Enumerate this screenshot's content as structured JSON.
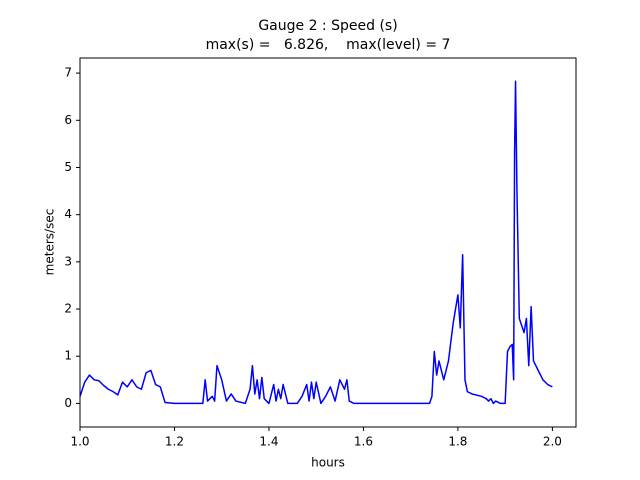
{
  "chart_data": {
    "type": "line",
    "title": "Gauge 2 : Speed (s)",
    "subtitle": "max(s) =   6.826,    max(level) = 7",
    "xlabel": "hours",
    "ylabel": "meters/sec",
    "xlim": [
      1.0,
      2.05
    ],
    "ylim": [
      -0.5,
      7.32
    ],
    "xticks": [
      {
        "value": 1.0,
        "label": "1.0"
      },
      {
        "value": 1.2,
        "label": "1.2"
      },
      {
        "value": 1.4,
        "label": "1.4"
      },
      {
        "value": 1.6,
        "label": "1.6"
      },
      {
        "value": 1.8,
        "label": "1.8"
      },
      {
        "value": 2.0,
        "label": "2.0"
      }
    ],
    "yticks": [
      0,
      1,
      2,
      3,
      4,
      5,
      6,
      7
    ],
    "series": [
      {
        "color": "#0000ff",
        "x": [
          1.0,
          1.01,
          1.02,
          1.03,
          1.04,
          1.05,
          1.06,
          1.07,
          1.08,
          1.09,
          1.1,
          1.11,
          1.12,
          1.13,
          1.14,
          1.15,
          1.16,
          1.17,
          1.18,
          1.2,
          1.26,
          1.265,
          1.27,
          1.28,
          1.285,
          1.29,
          1.3,
          1.31,
          1.32,
          1.33,
          1.35,
          1.36,
          1.365,
          1.37,
          1.375,
          1.38,
          1.385,
          1.39,
          1.4,
          1.41,
          1.415,
          1.42,
          1.425,
          1.43,
          1.44,
          1.46,
          1.47,
          1.48,
          1.485,
          1.49,
          1.495,
          1.5,
          1.51,
          1.52,
          1.53,
          1.54,
          1.55,
          1.56,
          1.565,
          1.57,
          1.58,
          1.74,
          1.745,
          1.75,
          1.755,
          1.76,
          1.77,
          1.78,
          1.79,
          1.795,
          1.8,
          1.805,
          1.81,
          1.815,
          1.82,
          1.83,
          1.85,
          1.86,
          1.865,
          1.87,
          1.875,
          1.88,
          1.89,
          1.9,
          1.905,
          1.91,
          1.915,
          1.918,
          1.92,
          1.922,
          1.925,
          1.93,
          1.94,
          1.945,
          1.95,
          1.955,
          1.96,
          1.97,
          1.98,
          1.99,
          2.0
        ],
        "values": [
          0.15,
          0.45,
          0.6,
          0.5,
          0.48,
          0.38,
          0.3,
          0.25,
          0.18,
          0.45,
          0.35,
          0.5,
          0.35,
          0.3,
          0.65,
          0.7,
          0.4,
          0.35,
          0.02,
          0,
          0,
          0.5,
          0.05,
          0.15,
          0.05,
          0.8,
          0.5,
          0.05,
          0.2,
          0.05,
          0,
          0.3,
          0.8,
          0.2,
          0.5,
          0.1,
          0.55,
          0.1,
          0,
          0.4,
          0.05,
          0.3,
          0.1,
          0.4,
          0,
          0,
          0.15,
          0.4,
          0.05,
          0.45,
          0.1,
          0.45,
          0,
          0.15,
          0.35,
          0.05,
          0.5,
          0.3,
          0.5,
          0.05,
          0,
          0,
          0.15,
          1.1,
          0.6,
          0.9,
          0.5,
          0.9,
          1.7,
          2.0,
          2.3,
          1.6,
          3.15,
          0.5,
          0.25,
          0.2,
          0.15,
          0.1,
          0.05,
          0.1,
          0,
          0.05,
          0,
          0,
          1.1,
          1.2,
          1.25,
          0.5,
          5.3,
          6.826,
          4.5,
          1.8,
          1.5,
          1.8,
          0.8,
          2.05,
          0.9,
          0.7,
          0.5,
          0.4,
          0.35
        ]
      }
    ]
  }
}
